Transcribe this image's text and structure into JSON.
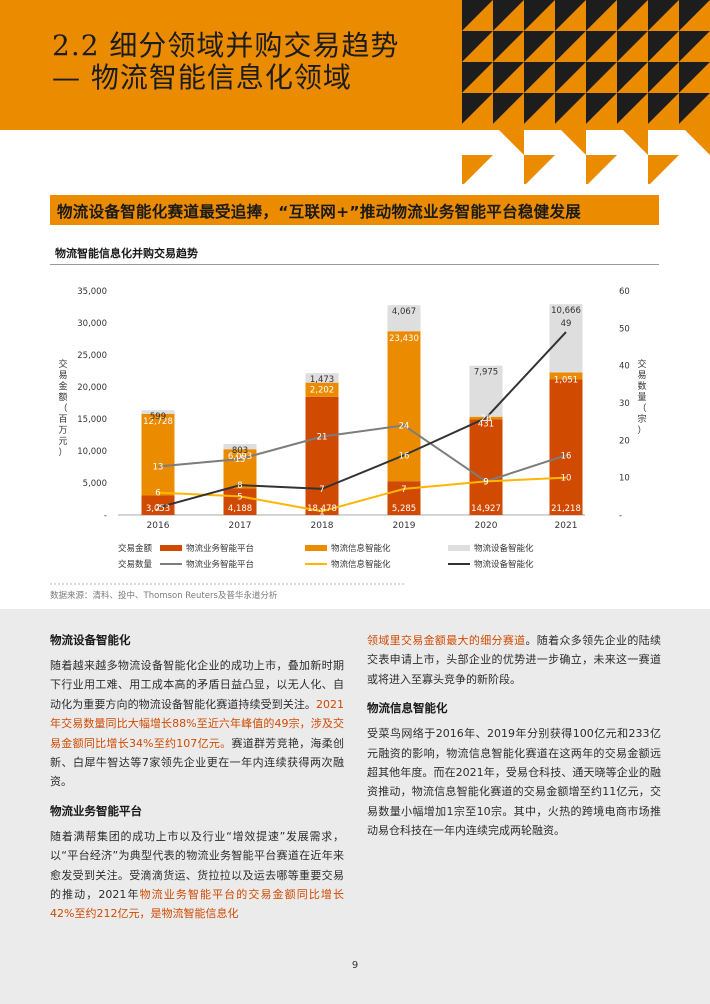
{
  "header": {
    "title_line1": "2.2 细分领域并购交易趋势",
    "title_line2": "— 物流智能信息化领域"
  },
  "section_heading": "物流设备智能化赛道最受追捧，“互联网+”推动物流业务智能平台稳健发展",
  "chart_data": {
    "type": "bar",
    "title": "物流智能信息化并购交易趋势",
    "categories": [
      "2016",
      "2017",
      "2018",
      "2019",
      "2020",
      "2021"
    ],
    "ylabel_left": "交易金额（百万元）",
    "ylabel_right": "交易数量（宗）",
    "ylim_left": [
      0,
      35000
    ],
    "ylim_right": [
      0,
      60
    ],
    "yticks_left": [
      "-",
      "5,000",
      "10,000",
      "15,000",
      "20,000",
      "25,000",
      "30,000",
      "35,000"
    ],
    "yticks_right": [
      "-",
      "10",
      "20",
      "30",
      "40",
      "50",
      "60"
    ],
    "bar_series": [
      {
        "name": "物流业务智能平台",
        "color": "#d04a02",
        "values": [
          3053,
          4188,
          18478,
          5285,
          14927,
          21218
        ],
        "labels": [
          "3,053",
          "4,188",
          "18,478",
          "5,285",
          "14,927",
          "21,218"
        ]
      },
      {
        "name": "物流信息智能化",
        "color": "#eb8c00",
        "values": [
          12728,
          6093,
          2202,
          23430,
          431,
          1051
        ],
        "labels": [
          "12,728",
          "6,093",
          "2,202",
          "23,430",
          "431",
          "1,051"
        ]
      },
      {
        "name": "物流设备智能化",
        "color": "#dedede",
        "values": [
          599,
          803,
          1473,
          4067,
          7975,
          10666
        ],
        "labels": [
          "599",
          "803",
          "1,473",
          "4,067",
          "7,975",
          "10,666"
        ]
      }
    ],
    "line_series": [
      {
        "name": "物流业务智能平台",
        "color": "#7d7d7d",
        "values": [
          13,
          15,
          21,
          24,
          9,
          16
        ]
      },
      {
        "name": "物流信息智能化",
        "color": "#ffb600",
        "values": [
          6,
          5,
          1,
          7,
          9,
          10
        ]
      },
      {
        "name": "物流设备智能化",
        "color": "#333333",
        "values": [
          2,
          8,
          7,
          16,
          26,
          49
        ]
      }
    ],
    "legend": {
      "amount_label": "交易金额",
      "count_label": "交易数量",
      "placement": "bottom"
    },
    "grid": false
  },
  "source_note": "数据来源：清科、投中、Thomson Reuters及普华永道分析",
  "left_column": {
    "h1": "物流设备智能化",
    "p1_a": "随着越来越多物流设备智能化企业的成功上市，叠加新时期下行业用工难、用工成本高的矛盾日益凸显，以无人化、自动化为重要方向的物流设备智能化赛道持续受到关注。",
    "p1_hl": "2021年交易数量同比大幅增长88%至近六年峰值的49宗，涉及交易金额同比增长34%至约107亿元。",
    "p1_b": "赛道群芳竞艳，海柔创新、白犀牛智达等7家领先企业更在一年内连续获得两次融资。",
    "h2": "物流业务智能平台",
    "p2_a": "随着满帮集团的成功上市以及行业“增效提速”发展需求，以“平台经济”为典型代表的物流业务智能平台赛道在近年来愈发受到关注。受滴滴货运、货拉拉以及运去哪等重要交易的推动，2021年",
    "p2_hl": "物流业务智能平台的交易金额同比增长42%至约212亿元，是物流智能信息化"
  },
  "right_column": {
    "p0_hl": "领域里交易金额最大的细分赛道",
    "p0_b": "。随着众多领先企业的陆续交表申请上市，头部企业的优势进一步确立，未来这一赛道或将进入至寡头竞争的新阶段。",
    "h3": "物流信息智能化",
    "p3": "受菜鸟网络于2016年、2019年分别获得100亿元和233亿元融资的影响，物流信息智能化赛道在这两年的交易金额远超其他年度。而在2021年，受易仓科技、通天晓等企业的融资推动，物流信息智能化赛道的交易金额增至约11亿元，交易数量小幅增加1宗至10宗。其中，火热的跨境电商市场推动易仓科技在一年内连续完成两轮融资。"
  },
  "page_number": "9"
}
